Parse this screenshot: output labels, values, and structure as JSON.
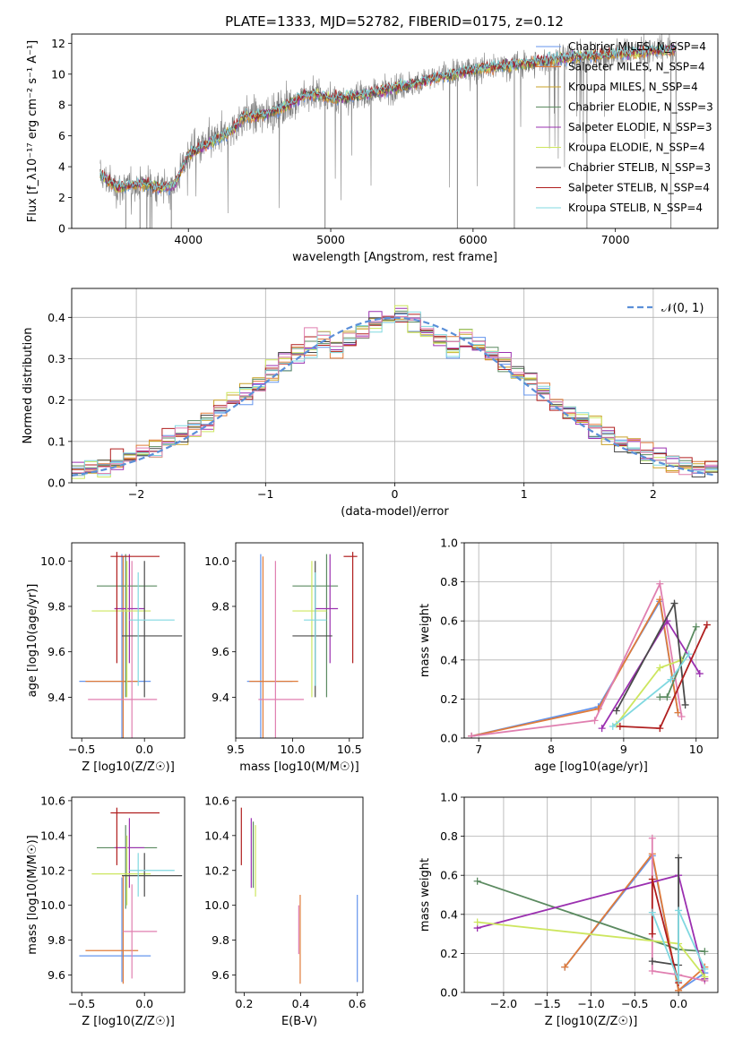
{
  "figure": {
    "title": "PLATE=1333, MJD=52782, FIBERID=0175, z=0.12"
  },
  "colors": {
    "chabrier_miles": "#6495ED",
    "salpeter_miles": "#e07b39",
    "kroupa_miles": "#c9a227",
    "chabrier_elodie": "#5b8a60",
    "salpeter_elodie": "#9b30b0",
    "kroupa_elodie": "#cde65f",
    "chabrier_stelib": "#4a4a4a",
    "salpeter_stelib": "#b01f1f",
    "kroupa_stelib": "#80d8e0",
    "pink": "#e07fb0",
    "data": "#808080",
    "normal": "#5b8fd8"
  },
  "chart_data": [
    {
      "id": "spectrum",
      "type": "line",
      "xlabel": "wavelength [Angstrom, rest frame]",
      "ylabel": "Flux [f_λ10⁻¹⁷ erg cm⁻² s⁻¹ A⁻¹]",
      "xlim": [
        3180,
        7720
      ],
      "ylim": [
        0,
        12.6
      ],
      "xticks": [
        "4000",
        "5000",
        "6000",
        "7000"
      ],
      "yticks": [
        "0",
        "2",
        "4",
        "6",
        "8",
        "10",
        "12"
      ],
      "legend": "top-right",
      "series": [
        {
          "name": "Chabrier MILES, N_SSP=4",
          "color_key": "chabrier_miles"
        },
        {
          "name": "Salpeter MILES, N_SSP=4",
          "color_key": "salpeter_miles"
        },
        {
          "name": "Kroupa MILES, N_SSP=4",
          "color_key": "kroupa_miles"
        },
        {
          "name": "Chabrier ELODIE, N_SSP=3",
          "color_key": "chabrier_elodie"
        },
        {
          "name": "Salpeter ELODIE, N_SSP=3",
          "color_key": "salpeter_elodie"
        },
        {
          "name": "Kroupa ELODIE, N_SSP=4",
          "color_key": "kroupa_elodie"
        },
        {
          "name": "Chabrier STELIB, N_SSP=3",
          "color_key": "chabrier_stelib"
        },
        {
          "name": "Salpeter STELIB, N_SSP=4",
          "color_key": "salpeter_stelib"
        },
        {
          "name": "Kroupa STELIB, N_SSP=4",
          "color_key": "kroupa_stelib"
        }
      ],
      "continuum": {
        "x": [
          3380,
          3500,
          3600,
          3700,
          3800,
          3900,
          4000,
          4100,
          4200,
          4300,
          4400,
          4500,
          4600,
          4700,
          4800,
          4900,
          5000,
          5200,
          5400,
          5600,
          5800,
          6000,
          6200,
          6400,
          6600,
          6800,
          7000,
          7200,
          7400
        ],
        "y": [
          3.5,
          2.6,
          2.8,
          2.9,
          2.6,
          2.8,
          4.8,
          5.3,
          5.8,
          6.3,
          7.3,
          7.3,
          7.6,
          8.0,
          8.6,
          8.7,
          8.4,
          8.6,
          9.0,
          9.4,
          9.9,
          10.3,
          10.5,
          10.7,
          11.0,
          11.2,
          11.3,
          11.5,
          11.6
        ]
      }
    },
    {
      "id": "residuals",
      "type": "line",
      "xlabel": "(data-model)/error",
      "ylabel": "Normed distribution",
      "xlim": [
        -2.5,
        2.5
      ],
      "ylim": [
        0,
        0.47
      ],
      "xticks": [
        -2,
        -1,
        0,
        1,
        2
      ],
      "yticks": [
        0.0,
        0.1,
        0.2,
        0.3,
        0.4
      ],
      "grid": true,
      "legend": "top-right",
      "legend_label": "𝒩(0, 1)",
      "normal": {
        "mu": 0,
        "sigma": 1
      },
      "bin_width": 0.1
    },
    {
      "id": "age_vs_Z",
      "type": "errorbar",
      "xlabel": "Z [log10(Z/Z☉)]",
      "ylabel": "age  [log10(age/yr)]",
      "xlim": [
        -0.58,
        0.32
      ],
      "ylim": [
        9.22,
        10.08
      ],
      "xticks": [
        -0.5,
        0.0
      ],
      "yticks": [
        9.4,
        9.6,
        9.8,
        10.0
      ],
      "points": [
        {
          "c": "chabrier_miles",
          "x": -0.18,
          "xe": [
            -0.52,
            0.05
          ],
          "y": 9.47,
          "ye": [
            9.17,
            10.03
          ]
        },
        {
          "c": "salpeter_miles",
          "x": -0.17,
          "xe": [
            -0.47,
            -0.05
          ],
          "y": 9.47,
          "ye": [
            9.18,
            10.02
          ]
        },
        {
          "c": "pink",
          "x": -0.1,
          "xe": [
            -0.45,
            0.1
          ],
          "y": 9.39,
          "ye": [
            9.15,
            10.0
          ]
        },
        {
          "c": "chabrier_elodie",
          "x": -0.15,
          "xe": [
            -0.38,
            0.1
          ],
          "y": 9.89,
          "ye": [
            9.4,
            10.03
          ]
        },
        {
          "c": "salpeter_elodie",
          "x": -0.12,
          "xe": [
            -0.24,
            0.0
          ],
          "y": 9.79,
          "ye": [
            9.55,
            10.03
          ]
        },
        {
          "c": "kroupa_elodie",
          "x": -0.14,
          "xe": [
            -0.42,
            0.05
          ],
          "y": 9.78,
          "ye": [
            9.4,
            10.0
          ]
        },
        {
          "c": "chabrier_stelib",
          "x": 0.0,
          "xe": [
            -0.18,
            0.3
          ],
          "y": 9.67,
          "ye": [
            9.4,
            10.0
          ]
        },
        {
          "c": "salpeter_stelib",
          "x": -0.22,
          "xe": [
            -0.27,
            0.12
          ],
          "y": 10.02,
          "ye": [
            9.55,
            10.04
          ]
        },
        {
          "c": "kroupa_stelib",
          "x": -0.05,
          "xe": [
            -0.12,
            0.24
          ],
          "y": 9.74,
          "ye": [
            9.45,
            9.95
          ]
        }
      ]
    },
    {
      "id": "age_vs_mass",
      "type": "errorbar",
      "xlabel": "mass [log10(M/M☉)]",
      "ylabel": "",
      "xlim": [
        9.5,
        10.62
      ],
      "ylim": [
        9.22,
        10.08
      ],
      "xticks": [
        9.5,
        10.0,
        10.5
      ],
      "yticks": [
        9.4,
        9.6,
        9.8,
        10.0
      ],
      "points": [
        {
          "c": "chabrier_miles",
          "x": 9.72,
          "xe": [
            9.6,
            10.0
          ],
          "y": 9.47,
          "ye": [
            9.17,
            10.03
          ]
        },
        {
          "c": "salpeter_miles",
          "x": 9.74,
          "xe": [
            9.62,
            10.05
          ],
          "y": 9.47,
          "ye": [
            9.18,
            10.02
          ]
        },
        {
          "c": "pink",
          "x": 9.85,
          "xe": [
            9.7,
            10.1
          ],
          "y": 9.39,
          "ye": [
            9.15,
            10.0
          ]
        },
        {
          "c": "chabrier_elodie",
          "x": 10.3,
          "xe": [
            10.0,
            10.4
          ],
          "y": 9.89,
          "ye": [
            9.4,
            10.03
          ]
        },
        {
          "c": "salpeter_elodie",
          "x": 10.33,
          "xe": [
            10.2,
            10.4
          ],
          "y": 9.79,
          "ye": [
            9.55,
            10.03
          ]
        },
        {
          "c": "kroupa_elodie",
          "x": 10.17,
          "xe": [
            10.0,
            10.3
          ],
          "y": 9.78,
          "ye": [
            9.4,
            10.0
          ]
        },
        {
          "c": "chabrier_stelib",
          "x": 10.2,
          "xe": [
            10.0,
            10.35
          ],
          "y": 9.67,
          "ye": [
            9.4,
            10.0
          ]
        },
        {
          "c": "salpeter_stelib",
          "x": 10.53,
          "xe": [
            10.45,
            10.57
          ],
          "y": 10.02,
          "ye": [
            9.55,
            10.04
          ]
        },
        {
          "c": "kroupa_stelib",
          "x": 10.2,
          "xe": [
            10.1,
            10.3
          ],
          "y": 9.74,
          "ye": [
            9.45,
            9.95
          ]
        }
      ]
    },
    {
      "id": "massweight_vs_age",
      "type": "line",
      "xlabel": "age  [log10(age/yr)]",
      "ylabel": "mass weight",
      "xlim": [
        6.8,
        10.3
      ],
      "ylim": [
        0,
        1
      ],
      "xticks": [
        7,
        8,
        9,
        10
      ],
      "yticks": [
        0.0,
        0.2,
        0.4,
        0.6,
        0.8,
        1.0
      ],
      "grid": true,
      "series": [
        {
          "c": "chabrier_miles",
          "x": [
            6.9,
            8.65,
            9.5,
            9.75
          ],
          "y": [
            0.01,
            0.16,
            0.7,
            0.13
          ]
        },
        {
          "c": "salpeter_miles",
          "x": [
            6.9,
            8.65,
            9.5,
            9.75
          ],
          "y": [
            0.01,
            0.15,
            0.71,
            0.13
          ]
        },
        {
          "c": "pink",
          "x": [
            6.9,
            8.6,
            9.5,
            9.8
          ],
          "y": [
            0.01,
            0.09,
            0.79,
            0.11
          ]
        },
        {
          "c": "chabrier_elodie",
          "x": [
            9.5,
            9.6,
            10.0
          ],
          "y": [
            0.21,
            0.21,
            0.57
          ]
        },
        {
          "c": "salpeter_elodie",
          "x": [
            8.7,
            9.6,
            10.05
          ],
          "y": [
            0.05,
            0.6,
            0.33
          ]
        },
        {
          "c": "kroupa_elodie",
          "x": [
            8.9,
            9.5,
            9.8
          ],
          "y": [
            0.07,
            0.36,
            0.4
          ]
        },
        {
          "c": "chabrier_stelib",
          "x": [
            8.9,
            9.7,
            9.85
          ],
          "y": [
            0.14,
            0.69,
            0.17
          ]
        },
        {
          "c": "salpeter_stelib",
          "x": [
            8.95,
            9.5,
            10.15
          ],
          "y": [
            0.06,
            0.05,
            0.58
          ]
        },
        {
          "c": "kroupa_stelib",
          "x": [
            8.85,
            9.65,
            9.9
          ],
          "y": [
            0.06,
            0.3,
            0.43
          ]
        }
      ]
    },
    {
      "id": "mass_vs_Z",
      "type": "errorbar",
      "xlabel": "Z [log10(Z/Z☉)]",
      "ylabel": "mass [log10(M/M☉)]",
      "xlim": [
        -0.58,
        0.32
      ],
      "ylim": [
        9.5,
        10.62
      ],
      "xticks": [
        -0.5,
        0.0
      ],
      "yticks": [
        9.6,
        9.8,
        10.0,
        10.2,
        10.4,
        10.6
      ],
      "points": [
        {
          "c": "chabrier_miles",
          "x": -0.18,
          "xe": [
            -0.52,
            0.05
          ],
          "y": 9.71,
          "ye": [
            9.56,
            10.16
          ]
        },
        {
          "c": "salpeter_miles",
          "x": -0.17,
          "xe": [
            -0.47,
            -0.05
          ],
          "y": 9.74,
          "ye": [
            9.55,
            10.17
          ]
        },
        {
          "c": "pink",
          "x": -0.1,
          "xe": [
            -0.17,
            0.1
          ],
          "y": 9.85,
          "ye": [
            9.58,
            10.12
          ]
        },
        {
          "c": "chabrier_elodie",
          "x": -0.15,
          "xe": [
            -0.38,
            0.1
          ],
          "y": 10.33,
          "ye": [
            9.98,
            10.46
          ]
        },
        {
          "c": "salpeter_elodie",
          "x": -0.12,
          "xe": [
            -0.24,
            0.0
          ],
          "y": 10.33,
          "ye": [
            10.1,
            10.5
          ]
        },
        {
          "c": "kroupa_elodie",
          "x": -0.14,
          "xe": [
            -0.42,
            0.05
          ],
          "y": 10.18,
          "ye": [
            10.0,
            10.4
          ]
        },
        {
          "c": "chabrier_stelib",
          "x": 0.0,
          "xe": [
            -0.18,
            0.3
          ],
          "y": 10.17,
          "ye": [
            10.05,
            10.3
          ]
        },
        {
          "c": "salpeter_stelib",
          "x": -0.22,
          "xe": [
            -0.27,
            0.12
          ],
          "y": 10.53,
          "ye": [
            10.23,
            10.56
          ]
        },
        {
          "c": "kroupa_stelib",
          "x": -0.05,
          "xe": [
            -0.12,
            0.24
          ],
          "y": 10.2,
          "ye": [
            10.05,
            10.3
          ]
        }
      ]
    },
    {
      "id": "mass_vs_ebv",
      "type": "errorbar",
      "xlabel": "E(B-V)",
      "ylabel": "",
      "xlim": [
        0.17,
        0.62
      ],
      "ylim": [
        9.5,
        10.62
      ],
      "xticks": [
        0.2,
        0.4,
        0.6
      ],
      "yticks": [
        9.6,
        9.8,
        10.0,
        10.2,
        10.4,
        10.6
      ],
      "points": [
        {
          "c": "salpeter_stelib",
          "x": 0.19,
          "ye": [
            10.23,
            10.56
          ]
        },
        {
          "c": "salpeter_elodie",
          "x": 0.225,
          "ye": [
            10.1,
            10.5
          ]
        },
        {
          "c": "chabrier_elodie",
          "x": 0.232,
          "ye": [
            10.1,
            10.48
          ]
        },
        {
          "c": "kroupa_elodie",
          "x": 0.24,
          "ye": [
            10.05,
            10.46
          ]
        },
        {
          "c": "salpeter_miles",
          "x": 0.398,
          "ye": [
            9.55,
            10.06
          ]
        },
        {
          "c": "pink",
          "x": 0.393,
          "ye": [
            9.72,
            10.0
          ]
        },
        {
          "c": "chabrier_miles",
          "x": 0.6,
          "ye": [
            9.56,
            10.06
          ]
        }
      ]
    },
    {
      "id": "massweight_vs_Z",
      "type": "line",
      "xlabel": "Z [log10(Z/Z☉)]",
      "ylabel": "mass weight",
      "xlim": [
        -2.45,
        0.45
      ],
      "ylim": [
        0,
        1
      ],
      "xticks": [
        -2.0,
        -1.5,
        -1.0,
        -0.5,
        0.0
      ],
      "yticks": [
        0.0,
        0.2,
        0.4,
        0.6,
        0.8,
        1.0
      ],
      "grid": true,
      "series": [
        {
          "c": "chabrier_miles",
          "x": [
            -1.3,
            -0.3,
            0.0,
            0.3
          ],
          "y": [
            0.13,
            0.7,
            0.01,
            0.1
          ]
        },
        {
          "c": "salpeter_miles",
          "x": [
            -1.3,
            -0.3,
            0.0,
            0.3
          ],
          "y": [
            0.13,
            0.71,
            0.01,
            0.13
          ]
        },
        {
          "c": "pink",
          "x": [
            -0.3,
            -0.3,
            0.0,
            0.3
          ],
          "y": [
            0.79,
            0.11,
            0.09,
            0.06
          ]
        },
        {
          "c": "chabrier_elodie",
          "x": [
            -2.3,
            0.0,
            0.3
          ],
          "y": [
            0.57,
            0.22,
            0.21
          ]
        },
        {
          "c": "salpeter_elodie",
          "x": [
            -2.3,
            0.0,
            0.3
          ],
          "y": [
            0.33,
            0.6,
            0.07
          ]
        },
        {
          "c": "kroupa_elodie",
          "x": [
            -2.3,
            0.0,
            0.3
          ],
          "y": [
            0.36,
            0.25,
            0.08
          ]
        },
        {
          "c": "chabrier_stelib",
          "x": [
            -0.3,
            0.0,
            0.0
          ],
          "y": [
            0.16,
            0.14,
            0.69
          ]
        },
        {
          "c": "salpeter_stelib",
          "x": [
            -0.3,
            -0.3,
            0.0
          ],
          "y": [
            0.3,
            0.58,
            0.05
          ]
        },
        {
          "c": "kroupa_stelib",
          "x": [
            -0.3,
            0.0,
            0.0,
            0.3
          ],
          "y": [
            0.41,
            0.06,
            0.42,
            0.12
          ]
        }
      ]
    }
  ]
}
